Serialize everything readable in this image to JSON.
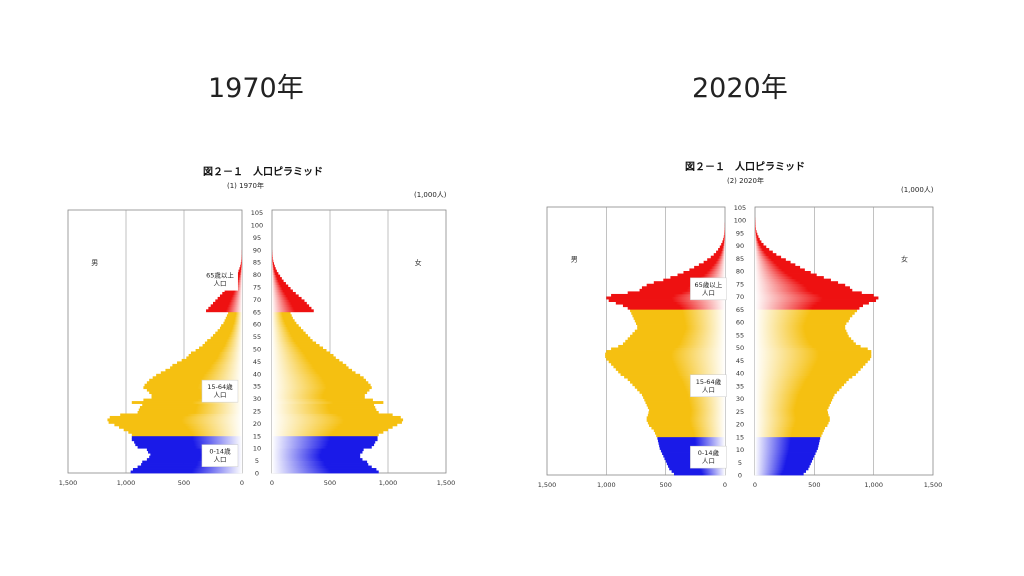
{
  "slide": {
    "left_heading": "1970年",
    "right_heading": "2020年"
  },
  "chart_data": [
    {
      "type": "bar",
      "title": "図２－１　人口ピラミッド",
      "subtitle": "(1)  1970年",
      "unit": "(1,000人)",
      "label_male": "男",
      "label_female": "女",
      "group_labels": [
        "65歳以上\n人口",
        "15-64歳\n人口",
        "0-14歳\n人口"
      ],
      "xlim": [
        0,
        1500
      ],
      "x_ticks": [
        "1,500",
        "1,000",
        "500",
        "0"
      ],
      "age_ticks": [
        "0",
        "5",
        "10",
        "15",
        "20",
        "25",
        "30",
        "35",
        "40",
        "45",
        "50",
        "55",
        "60",
        "65",
        "70",
        "75",
        "80",
        "85",
        "90",
        "95",
        "100",
        "105"
      ],
      "grid": true,
      "colors": {
        "old": "#ee1111",
        "working": "#f5c011",
        "young": "#1a1ae8"
      },
      "ages": [
        0,
        1,
        2,
        3,
        4,
        5,
        6,
        7,
        8,
        9,
        10,
        11,
        12,
        13,
        14,
        15,
        16,
        17,
        18,
        19,
        20,
        21,
        22,
        23,
        24,
        25,
        26,
        27,
        28,
        29,
        30,
        31,
        32,
        33,
        34,
        35,
        36,
        37,
        38,
        39,
        40,
        41,
        42,
        43,
        44,
        45,
        46,
        47,
        48,
        49,
        50,
        51,
        52,
        53,
        54,
        55,
        56,
        57,
        58,
        59,
        60,
        61,
        62,
        63,
        64,
        65,
        66,
        67,
        68,
        69,
        70,
        71,
        72,
        73,
        74,
        75,
        76,
        77,
        78,
        79,
        80,
        81,
        82,
        83,
        84,
        85,
        86,
        87,
        88,
        89,
        90
      ],
      "male": [
        960,
        940,
        900,
        870,
        860,
        820,
        800,
        790,
        810,
        820,
        900,
        920,
        930,
        950,
        950,
        950,
        980,
        1020,
        1060,
        1100,
        1150,
        1160,
        1140,
        1050,
        900,
        890,
        880,
        860,
        950,
        850,
        780,
        780,
        800,
        820,
        850,
        840,
        820,
        800,
        770,
        740,
        700,
        660,
        620,
        600,
        560,
        520,
        480,
        460,
        440,
        400,
        370,
        340,
        320,
        300,
        270,
        250,
        230,
        210,
        190,
        180,
        160,
        150,
        140,
        130,
        120,
        310,
        290,
        270,
        250,
        230,
        210,
        190,
        170,
        150,
        130,
        110,
        95,
        80,
        65,
        52,
        40,
        30,
        22,
        15,
        10,
        6,
        3,
        2,
        1,
        1,
        0
      ],
      "female": [
        920,
        900,
        860,
        830,
        820,
        780,
        760,
        760,
        780,
        790,
        860,
        880,
        890,
        910,
        910,
        920,
        960,
        1000,
        1040,
        1080,
        1120,
        1130,
        1110,
        1040,
        920,
        900,
        890,
        880,
        960,
        870,
        800,
        800,
        820,
        840,
        860,
        850,
        830,
        810,
        790,
        760,
        720,
        690,
        660,
        640,
        610,
        580,
        550,
        530,
        500,
        470,
        440,
        410,
        380,
        350,
        330,
        310,
        290,
        270,
        250,
        230,
        210,
        195,
        180,
        170,
        160,
        360,
        340,
        320,
        300,
        280,
        255,
        230,
        205,
        180,
        160,
        140,
        120,
        100,
        85,
        70,
        55,
        42,
        32,
        24,
        17,
        11,
        7,
        4,
        2,
        1,
        0
      ]
    },
    {
      "type": "bar",
      "title": "図２－１　人口ピラミッド",
      "subtitle": "(2)  2020年",
      "unit": "(1,000人)",
      "label_male": "男",
      "label_female": "女",
      "group_labels": [
        "65歳以上\n人口",
        "15-64歳\n人口",
        "0-14歳\n人口"
      ],
      "xlim": [
        0,
        1500
      ],
      "x_ticks": [
        "1,500",
        "1,000",
        "500",
        "0"
      ],
      "age_ticks": [
        "0",
        "5",
        "10",
        "15",
        "20",
        "25",
        "30",
        "35",
        "40",
        "45",
        "50",
        "55",
        "60",
        "65",
        "70",
        "75",
        "80",
        "85",
        "90",
        "95",
        "100",
        "105"
      ],
      "grid": true,
      "colors": {
        "old": "#ee1111",
        "working": "#f5c011",
        "young": "#1a1ae8"
      },
      "ages": [
        0,
        1,
        2,
        3,
        4,
        5,
        6,
        7,
        8,
        9,
        10,
        11,
        12,
        13,
        14,
        15,
        16,
        17,
        18,
        19,
        20,
        21,
        22,
        23,
        24,
        25,
        26,
        27,
        28,
        29,
        30,
        31,
        32,
        33,
        34,
        35,
        36,
        37,
        38,
        39,
        40,
        41,
        42,
        43,
        44,
        45,
        46,
        47,
        48,
        49,
        50,
        51,
        52,
        53,
        54,
        55,
        56,
        57,
        58,
        59,
        60,
        61,
        62,
        63,
        64,
        65,
        66,
        67,
        68,
        69,
        70,
        71,
        72,
        73,
        74,
        75,
        76,
        77,
        78,
        79,
        80,
        81,
        82,
        83,
        84,
        85,
        86,
        87,
        88,
        89,
        90,
        91,
        92,
        93,
        94,
        95,
        96,
        97,
        98,
        99,
        100,
        101,
        102,
        103,
        104,
        105
      ],
      "male": [
        430,
        450,
        470,
        480,
        490,
        500,
        510,
        520,
        530,
        540,
        550,
        555,
        560,
        565,
        570,
        580,
        590,
        600,
        620,
        640,
        650,
        660,
        660,
        650,
        645,
        640,
        650,
        660,
        670,
        680,
        690,
        700,
        720,
        740,
        760,
        780,
        800,
        820,
        850,
        880,
        900,
        920,
        940,
        960,
        980,
        1000,
        1010,
        1010,
        1000,
        960,
        900,
        860,
        840,
        820,
        800,
        780,
        760,
        740,
        740,
        750,
        760,
        770,
        780,
        790,
        800,
        820,
        860,
        920,
        980,
        1000,
        960,
        820,
        720,
        700,
        660,
        600,
        520,
        460,
        400,
        350,
        300,
        260,
        220,
        180,
        150,
        120,
        95,
        75,
        58,
        44,
        32,
        22,
        15,
        10,
        6,
        4,
        2,
        1,
        1,
        0,
        0,
        0,
        0,
        0,
        0,
        0
      ],
      "female": [
        410,
        430,
        450,
        460,
        470,
        480,
        490,
        500,
        510,
        520,
        530,
        535,
        540,
        545,
        550,
        560,
        570,
        580,
        590,
        610,
        620,
        630,
        630,
        620,
        615,
        610,
        620,
        630,
        640,
        650,
        660,
        670,
        690,
        710,
        730,
        750,
        770,
        790,
        820,
        850,
        870,
        890,
        910,
        930,
        950,
        970,
        980,
        980,
        980,
        950,
        890,
        850,
        830,
        810,
        790,
        780,
        770,
        760,
        760,
        770,
        790,
        800,
        820,
        840,
        860,
        880,
        910,
        960,
        1020,
        1040,
        1000,
        900,
        820,
        800,
        760,
        700,
        640,
        580,
        520,
        470,
        420,
        380,
        340,
        300,
        260,
        220,
        180,
        150,
        120,
        95,
        72,
        54,
        40,
        29,
        20,
        13,
        8,
        5,
        3,
        2,
        1,
        0,
        0,
        0,
        0,
        0
      ]
    }
  ]
}
